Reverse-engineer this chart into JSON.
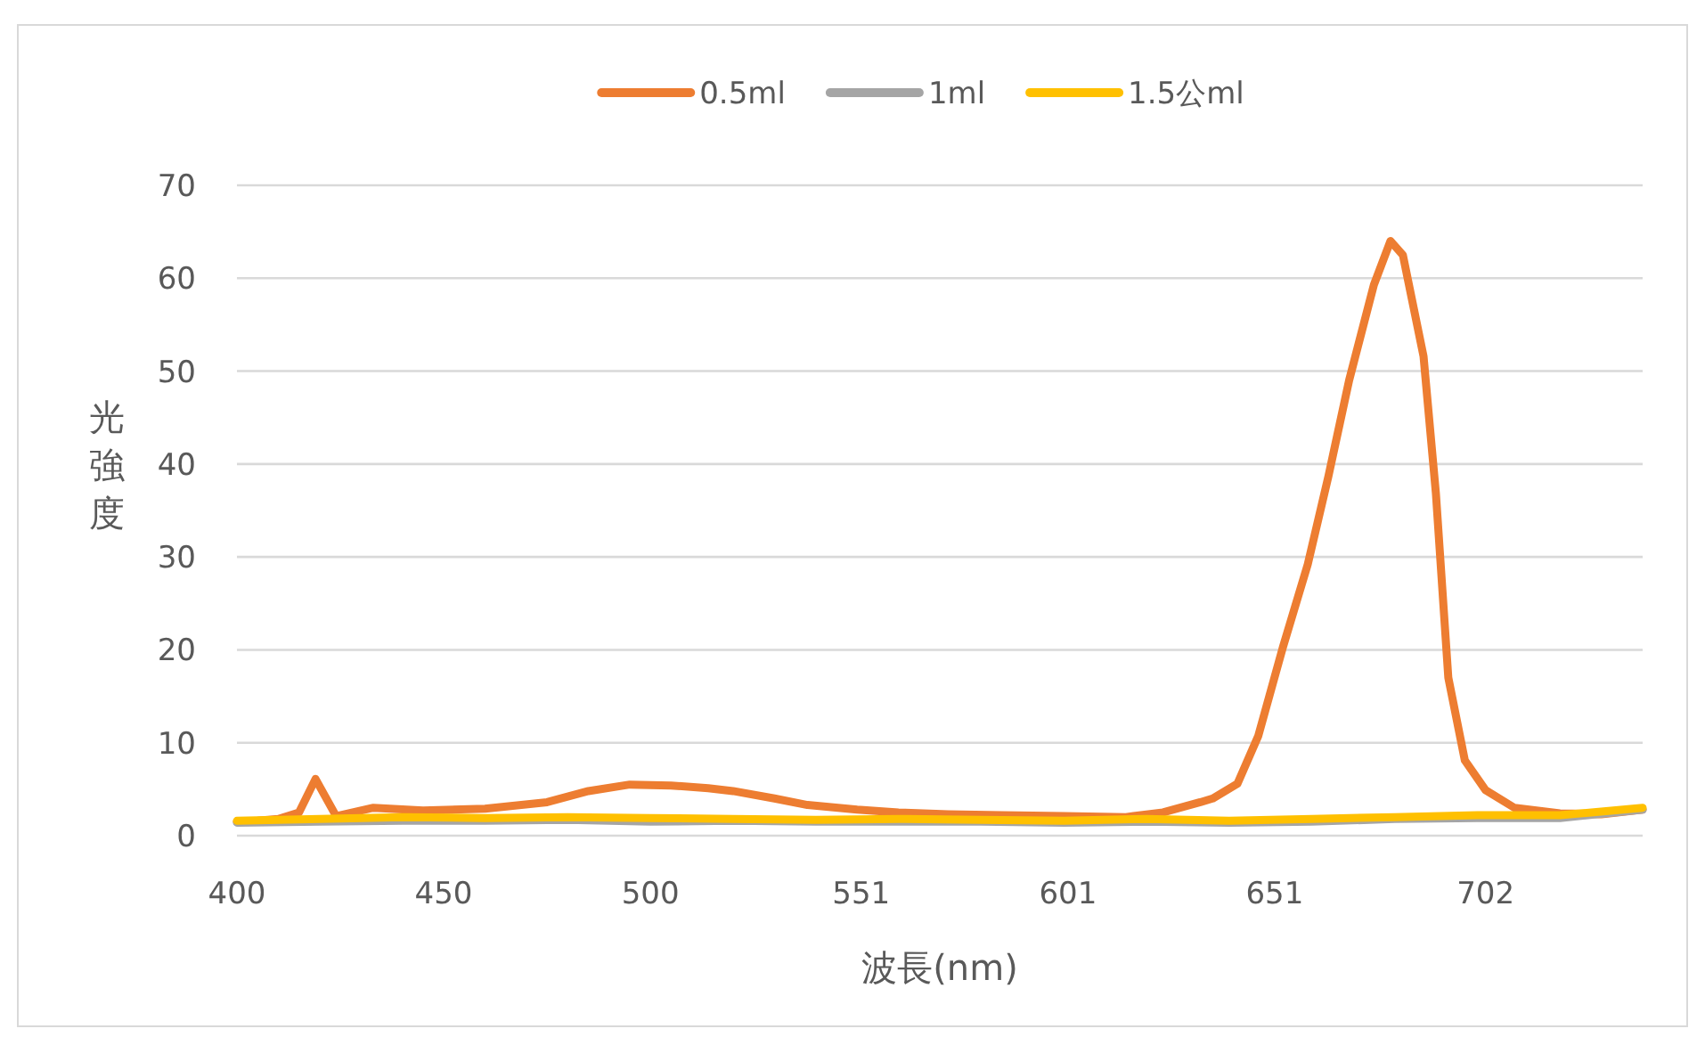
{
  "chart_data": {
    "type": "line",
    "xlabel": "波長(nm)",
    "ylabel": "光強度",
    "xlim": [
      400,
      740
    ],
    "xticks": [
      400,
      450,
      500,
      551,
      601,
      651,
      702
    ],
    "ylim": [
      0,
      70
    ],
    "yticks": [
      0,
      10,
      20,
      30,
      40,
      50,
      60,
      70
    ],
    "grid": "y",
    "legend": "top",
    "marker": "none",
    "line_style": "solid",
    "series": [
      {
        "name": "0.5ml",
        "color": "#ed7d31",
        "x": [
          400,
          405,
          410,
          415,
          419,
          424,
          433,
          445,
          460,
          475,
          485,
          495,
          505,
          514,
          520,
          530,
          538,
          550,
          560,
          572,
          585,
          600,
          615,
          624,
          633,
          636,
          642,
          647,
          653,
          659,
          664,
          669,
          675,
          679,
          682,
          687,
          690,
          693,
          697,
          702,
          709,
          720,
          730,
          740
        ],
        "values": [
          1.5,
          1.6,
          1.8,
          2.5,
          6.1,
          2.1,
          3.0,
          2.7,
          2.9,
          3.6,
          4.8,
          5.5,
          5.4,
          5.1,
          4.8,
          4.0,
          3.3,
          2.8,
          2.5,
          2.3,
          2.2,
          2.1,
          2.0,
          2.5,
          3.6,
          4.0,
          5.6,
          10.7,
          20.3,
          29.2,
          38.7,
          49,
          59.3,
          64,
          62.5,
          51.6,
          36.8,
          17,
          8.1,
          4.9,
          3.0,
          2.4,
          2.3,
          2.8
        ]
      },
      {
        "name": "1ml",
        "color": "#a5a5a5",
        "x": [
          400,
          420,
          440,
          460,
          480,
          500,
          520,
          540,
          560,
          580,
          600,
          620,
          640,
          660,
          680,
          700,
          720,
          740
        ],
        "values": [
          1.4,
          1.5,
          1.6,
          1.6,
          1.7,
          1.5,
          1.6,
          1.5,
          1.5,
          1.5,
          1.4,
          1.5,
          1.4,
          1.5,
          1.8,
          1.9,
          1.9,
          2.8
        ]
      },
      {
        "name": "1.5公ml",
        "color": "#ffc000",
        "x": [
          400,
          420,
          440,
          460,
          480,
          500,
          520,
          540,
          560,
          580,
          600,
          620,
          640,
          660,
          680,
          700,
          720,
          740
        ],
        "values": [
          1.6,
          1.8,
          2.0,
          1.9,
          2.0,
          1.9,
          1.8,
          1.7,
          1.8,
          1.7,
          1.6,
          1.8,
          1.6,
          1.8,
          2.0,
          2.2,
          2.2,
          3.0
        ]
      }
    ]
  }
}
